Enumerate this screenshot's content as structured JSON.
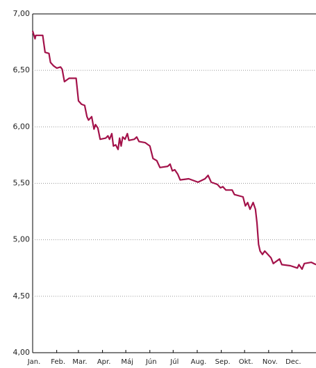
{
  "chart_data": {
    "type": "line",
    "x": [
      0,
      3,
      4,
      10,
      13,
      16,
      21,
      23,
      27,
      31,
      36,
      38,
      41,
      47,
      56,
      59,
      63,
      67,
      70,
      72,
      76,
      79,
      81,
      84,
      87,
      94,
      97,
      99,
      102,
      104,
      107,
      110,
      112,
      114,
      116,
      119,
      122,
      124,
      131,
      134,
      137,
      145,
      151,
      155,
      160,
      164,
      174,
      177,
      180,
      183,
      187,
      190,
      201,
      213,
      222,
      226,
      230,
      238,
      242,
      245,
      249,
      257,
      260,
      271,
      274,
      277,
      280,
      284,
      287,
      289,
      291,
      293,
      296,
      299,
      307,
      310,
      318,
      321,
      332,
      341,
      343,
      347,
      350,
      359,
      365
    ],
    "series": [
      {
        "color": "#a3124a",
        "values": [
          6.85,
          6.78,
          6.81,
          6.81,
          6.81,
          6.66,
          6.65,
          6.57,
          6.54,
          6.52,
          6.53,
          6.51,
          6.4,
          6.43,
          6.43,
          6.23,
          6.2,
          6.19,
          6.09,
          6.06,
          6.09,
          5.98,
          6.02,
          5.99,
          5.89,
          5.9,
          5.92,
          5.89,
          5.94,
          5.83,
          5.84,
          5.8,
          5.9,
          5.83,
          5.91,
          5.89,
          5.94,
          5.88,
          5.89,
          5.91,
          5.87,
          5.86,
          5.83,
          5.72,
          5.7,
          5.64,
          5.65,
          5.67,
          5.61,
          5.62,
          5.58,
          5.53,
          5.54,
          5.51,
          5.54,
          5.57,
          5.51,
          5.49,
          5.46,
          5.47,
          5.44,
          5.44,
          5.4,
          5.38,
          5.3,
          5.33,
          5.27,
          5.33,
          5.27,
          5.15,
          4.96,
          4.9,
          4.87,
          4.9,
          4.84,
          4.79,
          4.83,
          4.78,
          4.77,
          4.75,
          4.78,
          4.74,
          4.79,
          4.8,
          4.78
        ]
      }
    ],
    "xlim": [
      0,
      365
    ],
    "xticks": [
      {
        "value": 0,
        "label": "Jan."
      },
      {
        "value": 31,
        "label": "Feb."
      },
      {
        "value": 59,
        "label": "Mar."
      },
      {
        "value": 90,
        "label": "Apr."
      },
      {
        "value": 120,
        "label": "Máj"
      },
      {
        "value": 151,
        "label": "Jún"
      },
      {
        "value": 181,
        "label": "Júl"
      },
      {
        "value": 212,
        "label": "Aug."
      },
      {
        "value": 243,
        "label": "Sep."
      },
      {
        "value": 273,
        "label": "Okt."
      },
      {
        "value": 304,
        "label": "Nov."
      },
      {
        "value": 334,
        "label": "Dec."
      }
    ],
    "ylim": [
      4,
      7
    ],
    "yticks": [
      {
        "value": 4,
        "label": "4,00"
      },
      {
        "value": 4.5,
        "label": "4,50"
      },
      {
        "value": 5,
        "label": "5,00"
      },
      {
        "value": 5.5,
        "label": "5,50"
      },
      {
        "value": 6,
        "label": "6,00"
      },
      {
        "value": 6.5,
        "label": "6,50"
      },
      {
        "value": 7,
        "label": "7,00"
      }
    ],
    "grid": true
  }
}
